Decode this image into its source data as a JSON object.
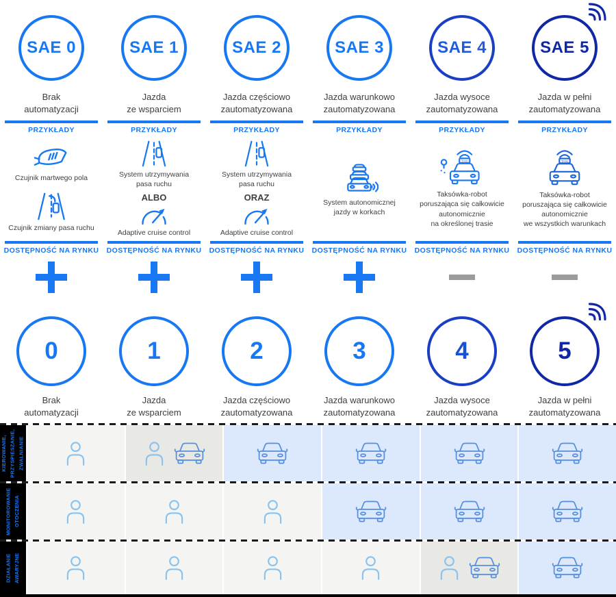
{
  "labels": {
    "examples": "PRZYKŁADY",
    "availability": "DOSTĘPNOŚĆ NA RYNKU"
  },
  "palette": {
    "accent_blue": "#1877f2",
    "navy": "#1128a6",
    "text_dark": "#3c4043",
    "minus_gray": "#9b9b9b",
    "cell_gray": "#f4f4f2",
    "cell_dark": "#e8e8e5",
    "cell_blue": "#dce8fb",
    "person_icon": "#8ac2ee",
    "car_icon": "#568fdd",
    "row_label_bg": "#000000"
  },
  "columns": [
    {
      "sae": "SAE 0",
      "number": "0",
      "title": "Brak\nautomatyzacji",
      "availability": "plus",
      "colors": {
        "circle": "#1877f2",
        "text": "#1877f2",
        "number": "#1877f2",
        "icon": "#1877f2"
      },
      "examples": [
        {
          "icon": "blind-spot-mirror-icon",
          "label": "Czujnik martwego pola"
        },
        {
          "icon": "lane-change-icon",
          "label": "Czujnik zmiany pasa ruchu"
        }
      ]
    },
    {
      "sae": "SAE 1",
      "number": "1",
      "title": "Jazda\nze wsparciem",
      "availability": "plus",
      "conjunction": "ALBO",
      "colors": {
        "circle": "#1877f2",
        "text": "#1877f2",
        "number": "#1877f2",
        "icon": "#1877f2"
      },
      "examples": [
        {
          "icon": "lane-keeping-icon",
          "label": "System utrzymywania\npasa ruchu"
        },
        {
          "icon": "speedometer-icon",
          "label": "Adaptive cruise control"
        }
      ]
    },
    {
      "sae": "SAE 2",
      "number": "2",
      "title": "Jazda częściowo\nzautomatyzowana",
      "availability": "plus",
      "conjunction": "ORAZ",
      "colors": {
        "circle": "#1877f2",
        "text": "#1877f2",
        "number": "#1877f2",
        "icon": "#1877f2"
      },
      "examples": [
        {
          "icon": "lane-keeping-icon",
          "label": "System utrzymywania\npasa ruchu"
        },
        {
          "icon": "speedometer-icon",
          "label": "Adaptive cruise control"
        }
      ]
    },
    {
      "sae": "SAE 3",
      "number": "3",
      "title": "Jazda warunkowo\nzautomatyzowana",
      "availability": "plus",
      "colors": {
        "circle": "#1877f2",
        "text": "#1877f2",
        "number": "#1877f2",
        "icon": "#1877f2"
      },
      "examples": [
        {
          "icon": "traffic-jam-icon",
          "label": "System autonomicznej\njazdy w korkach"
        }
      ]
    },
    {
      "sae": "SAE 4",
      "number": "4",
      "title": "Jazda wysoce\nzautomatyzowana",
      "availability": "minus",
      "colors": {
        "circle": "#1b3fc4",
        "text": "#1e5ae2",
        "number": "#1750d2",
        "icon": "#1877f2"
      },
      "examples": [
        {
          "icon": "robo-taxi-route-icon",
          "label": "Taksówka-robot\nporuszająca się całkowicie\nautonomicznie\nna określonej trasie"
        }
      ]
    },
    {
      "sae": "SAE 5",
      "number": "5",
      "title": "Jazda w pełni\nzautomatyzowana",
      "availability": "minus",
      "has_wifi_badge": true,
      "colors": {
        "circle": "#1128a6",
        "text": "#1128a6",
        "number": "#1128a6",
        "icon": "#1d64da",
        "wifi": "#1128a6"
      },
      "examples": [
        {
          "icon": "robo-taxi-icon",
          "label": "Taksówka-robot\nporuszająca się całkowicie\nautonomicznie\nwe wszystkich warunkach"
        }
      ]
    }
  ],
  "table": {
    "rows": [
      {
        "label": "KIEROWANIE,\nPRZYSPIESZANIE,\nZWALNIANIE",
        "cells": [
          {
            "bg": "gray",
            "icons": [
              "person"
            ]
          },
          {
            "bg": "dark",
            "icons": [
              "person",
              "car"
            ]
          },
          {
            "bg": "blue",
            "icons": [
              "car"
            ]
          },
          {
            "bg": "blue",
            "icons": [
              "car"
            ]
          },
          {
            "bg": "blue",
            "icons": [
              "car"
            ]
          },
          {
            "bg": "blue",
            "icons": [
              "car"
            ]
          }
        ]
      },
      {
        "label": "MONITOROWANIE\nOTOCZENIA",
        "cells": [
          {
            "bg": "gray",
            "icons": [
              "person"
            ]
          },
          {
            "bg": "gray",
            "icons": [
              "person"
            ]
          },
          {
            "bg": "gray",
            "icons": [
              "person"
            ]
          },
          {
            "bg": "blue",
            "icons": [
              "car"
            ]
          },
          {
            "bg": "blue",
            "icons": [
              "car"
            ]
          },
          {
            "bg": "blue",
            "icons": [
              "car"
            ]
          }
        ]
      },
      {
        "label": "DZIAŁANIE\nAWARYJNE",
        "cells": [
          {
            "bg": "gray",
            "icons": [
              "person"
            ]
          },
          {
            "bg": "gray",
            "icons": [
              "person"
            ]
          },
          {
            "bg": "gray",
            "icons": [
              "person"
            ]
          },
          {
            "bg": "gray",
            "icons": [
              "person"
            ]
          },
          {
            "bg": "dark",
            "icons": [
              "person",
              "car"
            ]
          },
          {
            "bg": "blue",
            "icons": [
              "car"
            ]
          }
        ]
      }
    ]
  }
}
